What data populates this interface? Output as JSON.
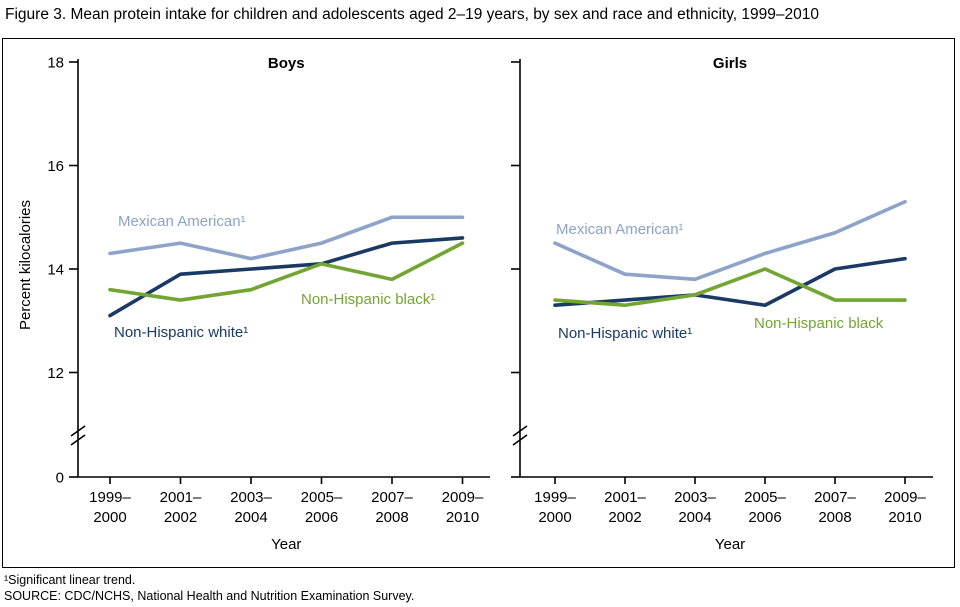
{
  "figure": {
    "title": "Figure 3. Mean protein intake for children and adolescents aged 2–19 years, by sex and race and ethnicity, 1999–2010",
    "footnote1": "¹Significant linear trend.",
    "source": "SOURCE: CDC/NCHS, National Health and Nutrition Examination Survey."
  },
  "chart_data": [
    {
      "type": "line",
      "title": "Boys",
      "xlabel": "Year",
      "ylabel": "Percent kilocalories",
      "ylim": [
        12,
        18
      ],
      "yticks": [
        0,
        12,
        14,
        16,
        18
      ],
      "axis_break": true,
      "grid": false,
      "x": [
        "1999–2000",
        "2001–2002",
        "2003–2004",
        "2005–2006",
        "2007–2008",
        "2009–2010"
      ],
      "x_tick_lines": [
        [
          "1999–",
          "2000"
        ],
        [
          "2001–",
          "2002"
        ],
        [
          "2003–",
          "2004"
        ],
        [
          "2005–",
          "2006"
        ],
        [
          "2007–",
          "2008"
        ],
        [
          "2009–",
          "2010"
        ]
      ],
      "series": [
        {
          "name": "Mexican American¹",
          "color": "#8da3c7",
          "values": [
            14.3,
            14.5,
            14.2,
            14.5,
            15.0,
            15.0
          ]
        },
        {
          "name": "Non-Hispanic white¹",
          "color": "#1a3a64",
          "values": [
            13.1,
            13.9,
            14.0,
            14.1,
            14.5,
            14.6
          ]
        },
        {
          "name": "Non-Hispanic black¹",
          "color": "#73a533",
          "values": [
            13.6,
            13.4,
            13.6,
            14.1,
            13.8,
            14.5
          ]
        }
      ]
    },
    {
      "type": "line",
      "title": "Girls",
      "xlabel": "Year",
      "ylabel": "",
      "ylim": [
        12,
        18
      ],
      "yticks": [
        0,
        12,
        14,
        16,
        18
      ],
      "axis_break": true,
      "grid": false,
      "x": [
        "1999–2000",
        "2001–2002",
        "2003–2004",
        "2005–2006",
        "2007–2008",
        "2009–2010"
      ],
      "x_tick_lines": [
        [
          "1999–",
          "2000"
        ],
        [
          "2001–",
          "2002"
        ],
        [
          "2003–",
          "2004"
        ],
        [
          "2005–",
          "2006"
        ],
        [
          "2007–",
          "2008"
        ],
        [
          "2009–",
          "2010"
        ]
      ],
      "series": [
        {
          "name": "Mexican American¹",
          "color": "#8da3c7",
          "values": [
            14.5,
            13.9,
            13.8,
            14.3,
            14.7,
            15.3
          ]
        },
        {
          "name": "Non-Hispanic white¹",
          "color": "#1a3a64",
          "values": [
            13.3,
            13.4,
            13.5,
            13.3,
            14.0,
            14.2
          ]
        },
        {
          "name": "Non-Hispanic black",
          "color": "#73a533",
          "values": [
            13.4,
            13.3,
            13.5,
            14.0,
            13.4,
            13.4
          ]
        }
      ]
    }
  ]
}
